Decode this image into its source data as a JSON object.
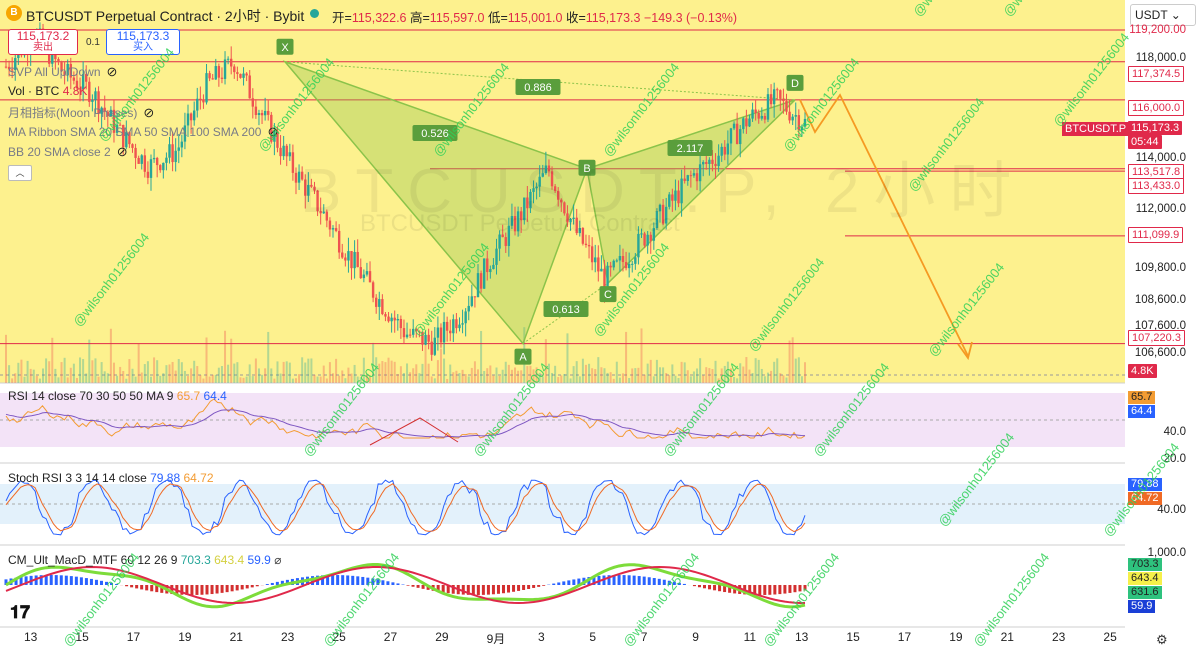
{
  "header": {
    "logo": "B",
    "title": "BTCUSDT Perpetual Contract · 2小时 · Bybit",
    "ohlc": {
      "open_label": "开=",
      "open": "115,322.6",
      "high_label": "高=",
      "high": "115,597.0",
      "low_label": "低=",
      "low": "115,001.0",
      "close_label": "收=",
      "close": "115,173.3",
      "change": "−149.3 (−0.13%)"
    }
  },
  "trade": {
    "sell_price": "115,173.2",
    "sell_label": "卖出",
    "spread": "0.1",
    "buy_price": "115,173.3",
    "buy_label": "买入"
  },
  "indicators": {
    "svp": "SVP All Up/Down",
    "vol": "Vol · BTC",
    "vol_value": "4.8K",
    "moon": "月相指标(Moon Phases)",
    "ribbon": "MA Ribbon SMA 20 SMA 50 SMA 100 SMA 200",
    "bb": "BB 20 SMA close 2",
    "rsi": "RSI 14 close 70 30 50 50 MA 9",
    "rsi_v1": "65.7",
    "rsi_v2": "64.4",
    "stoch": "Stoch RSI 3 3 14 14 close",
    "stoch_v1": "79.88",
    "stoch_v2": "64.72",
    "macd": "CM_Ult_MacD_MTF 60 12 26 9",
    "macd_v1": "703.3",
    "macd_v2": "643.4",
    "macd_v3": "59.9"
  },
  "axis": {
    "currency": "USDT",
    "price_ticks": [
      "118,000.0",
      "114,000.0",
      "112,000.0",
      "109,800.0",
      "108,600.0",
      "107,600.0",
      "106,600.0"
    ],
    "rsi_ticks": [
      "40.0",
      "20.0"
    ],
    "stoch_ticks": [
      "40.00"
    ],
    "macd_ticks": [
      "1,000.0"
    ],
    "top_partial": "119,200.00",
    "x_ticks": [
      "13",
      "15",
      "17",
      "19",
      "21",
      "23",
      "25",
      "27",
      "29",
      "9月",
      "3",
      "5",
      "7",
      "9",
      "11",
      "13",
      "15",
      "17",
      "19",
      "21",
      "23",
      "25"
    ]
  },
  "price_tags": {
    "t117": "117,374.5",
    "t116": "116,000.0",
    "current": "115,173.3",
    "countdown": "05:44",
    "t113a": "113,517.8",
    "t113b": "113,433.0",
    "t111": "111,099.9",
    "t107": "107,220.3",
    "vol": "4.8K",
    "symbol": "BTCUSDT.P",
    "rsi1": "65.7",
    "rsi2": "64.4",
    "st1": "79.88",
    "st2": "64.72",
    "m1": "703.3",
    "m2": "643.4",
    "m3": "631.6",
    "m4": "59.9"
  },
  "pattern": {
    "X": "X",
    "A": "A",
    "B": "B",
    "C": "C",
    "D": "D",
    "r1": "0.526",
    "r2": "0.886",
    "r3": "0.613",
    "r4": "2.117"
  },
  "watermark": {
    "text": "@wilsonh01256004",
    "big": "BTCUSDT.P, 2小时",
    "big2": "BTCUSDT Perpetual Contract"
  },
  "colors": {
    "up": "#26a69a",
    "down": "#ef5350",
    "pattern": "#8bc34a",
    "projection": "#f59a23",
    "level": "#e0294a",
    "rsi": "#f39c33",
    "rsi_ma": "#7e57c2",
    "chart_bg": "#fdf18e"
  },
  "chart_data": {
    "type": "line",
    "title": "BTCUSDT Perpetual Contract · 2小时 · Bybit",
    "x_ticks": [
      "13",
      "15",
      "17",
      "19",
      "21",
      "23",
      "25",
      "27",
      "29",
      "9月",
      "3",
      "5",
      "7",
      "9",
      "11"
    ],
    "price_path": [
      117200,
      118400,
      117000,
      116300,
      114800,
      113600,
      114200,
      116500,
      117374,
      115400,
      113600,
      112100,
      110400,
      108900,
      107600,
      107220,
      108400,
      110300,
      111800,
      113517,
      111200,
      109500,
      110600,
      111900,
      113200,
      114100,
      115300,
      116000,
      115173
    ],
    "harmonic_points": {
      "X": 117374.5,
      "A": 107220.3,
      "B": 113517.8,
      "C": 109400,
      "D": 116000.0
    },
    "ratios": [
      "0.526",
      "0.886",
      "0.613",
      "2.117"
    ],
    "levels": [
      117374.5,
      116000.0,
      113517.8,
      113433.0,
      111099.9,
      107220.3
    ],
    "ylim": [
      105800,
      119600
    ],
    "rsi": {
      "ticks": [
        "40.0",
        "20.0"
      ],
      "last": 65.7,
      "ma": 64.4
    },
    "stoch_rsi": {
      "k": 79.88,
      "d": 64.72
    },
    "macd": {
      "values": [
        703.3,
        643.4,
        631.6,
        59.9
      ]
    }
  }
}
